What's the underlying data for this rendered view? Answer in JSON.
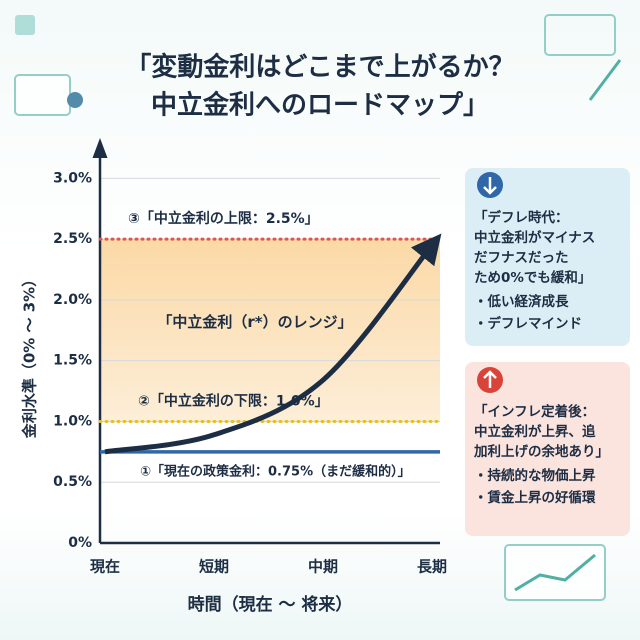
{
  "chart_data": {
    "type": "line",
    "title_lines": [
      "「変動金利はどこまで上がるか？",
      "中立金利へのロードマップ」"
    ],
    "x_label": "時間（現在 〜 将来）",
    "y_label": "金利水準（0% 〜 3%）",
    "categories": [
      "現在",
      "短期",
      "中期",
      "長期"
    ],
    "series": [
      {
        "color": "#1d2e44",
        "values": [
          0.75,
          0.89,
          1.34,
          2.45
        ]
      }
    ],
    "ylim": [
      0,
      3.2
    ],
    "yticks": [
      {
        "value": 0,
        "label": "0%"
      },
      {
        "value": 0.5,
        "label": "0.5%"
      },
      {
        "value": 1.0,
        "label": "1.0%"
      },
      {
        "value": 1.5,
        "label": "1.5%"
      },
      {
        "value": 2.0,
        "label": "2.0%"
      },
      {
        "value": 2.5,
        "label": "2.5%"
      },
      {
        "value": 3.0,
        "label": "3.0%"
      }
    ],
    "grid": true,
    "band": {
      "from": 1.0,
      "to": 2.5,
      "label": "「中立金利（r*）のレンジ」"
    },
    "reference_lines": [
      {
        "value": 2.5,
        "label": "③「中立金利の上限：2.5%」",
        "color": "#e5534b",
        "style": "dotted"
      },
      {
        "value": 1.0,
        "label": "②「中立金利の下限：1.0%」",
        "color": "#e8c21c",
        "style": "dotted"
      },
      {
        "value": 0.75,
        "label": "①「現在の政策金利：0.75%（まだ緩和的）」",
        "color": "#2f67a8",
        "style": "solid"
      }
    ]
  },
  "side_panels": [
    {
      "lines": [
        "「デフレ時代：",
        "中立金利がマイナス",
        "だフナスだった",
        "ため0%でも緩和」"
      ],
      "bullets": [
        "・低い経済成長",
        "・デフレマインド"
      ]
    },
    {
      "lines": [
        "「インフレ定着後：",
        "中立金利が上昇、追",
        "加利上げの余地あり」"
      ],
      "bullets": [
        "・持続的な物価上昇",
        "・賃金上昇の好循環"
      ]
    }
  ]
}
